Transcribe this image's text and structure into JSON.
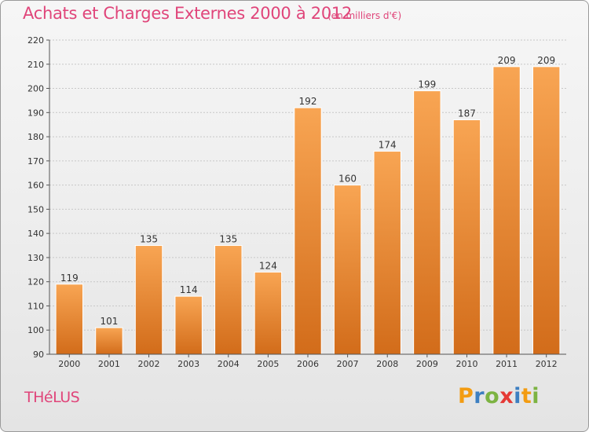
{
  "header": {
    "title": "Achats et Charges Externes 2000 à 2012",
    "subtitle": "(en milliers d'€)"
  },
  "footer": {
    "city": "THéLUS",
    "brand": {
      "letters": [
        "P",
        "r",
        "o",
        "x",
        "i",
        "t",
        "i"
      ],
      "colors": [
        "#f39c12",
        "#3d7fc1",
        "#7cb342",
        "#e53935",
        "#3d7fc1",
        "#f39c12",
        "#7cb342"
      ]
    }
  },
  "chart_data": {
    "type": "bar",
    "title": "Achats et Charges Externes 2000 à 2012",
    "subtitle": "(en milliers d'€)",
    "categories": [
      "2000",
      "2001",
      "2002",
      "2003",
      "2004",
      "2005",
      "2006",
      "2007",
      "2008",
      "2009",
      "2010",
      "2011",
      "2012"
    ],
    "values": [
      119,
      101,
      135,
      114,
      135,
      124,
      192,
      160,
      174,
      199,
      187,
      209,
      209
    ],
    "ylim": [
      90,
      220
    ],
    "yticks": [
      90,
      100,
      110,
      120,
      130,
      140,
      150,
      160,
      170,
      180,
      190,
      200,
      210,
      220
    ],
    "grid": true,
    "bar_color": "#f0963a",
    "bar_color_dark": "#d26c1a"
  }
}
